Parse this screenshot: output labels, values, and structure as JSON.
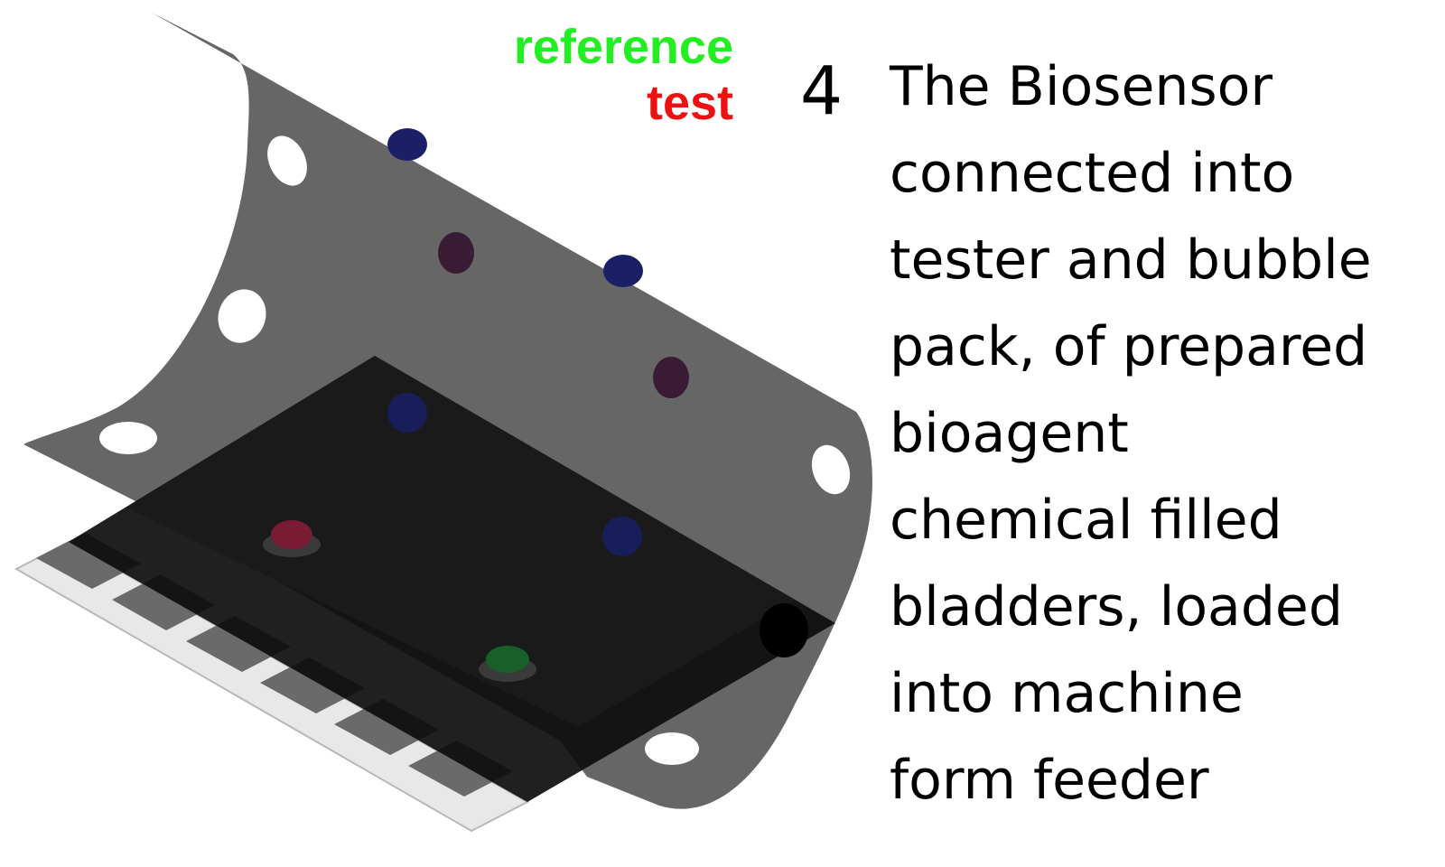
{
  "legend": {
    "reference": "reference",
    "test": "test"
  },
  "step": {
    "number": "4",
    "caption_lines": [
      "The Biosensor",
      "connected into",
      "tester and bubble",
      "pack, of prepared",
      "bioagent",
      "chemical filled",
      "bladders, loaded",
      "into machine",
      "form feeder"
    ]
  },
  "colors": {
    "reference": "#22ee22",
    "test": "#ee1111",
    "carrier_sheet": "#5a5a5a",
    "sensor_card": "#0d0d0d",
    "bladder_blue": "#1a1f66",
    "bladder_purple": "#3a1b34",
    "bladder_red": "#7a1b35",
    "bladder_green": "#17602a"
  }
}
